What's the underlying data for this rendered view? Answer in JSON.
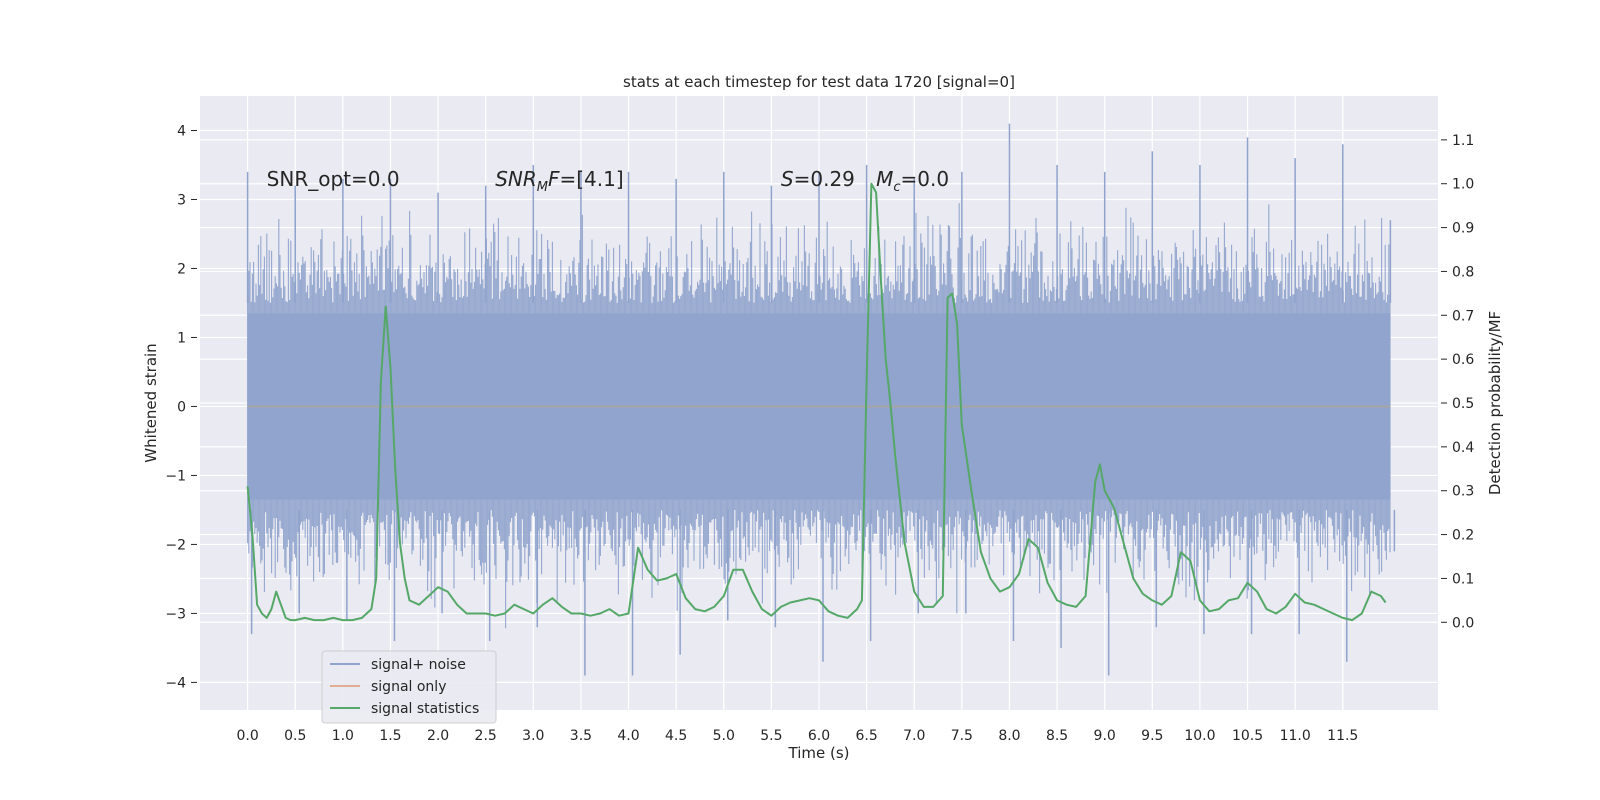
{
  "chart_data": {
    "type": "line",
    "title": "stats at each timestep for test data 1720 [signal=0]",
    "xlabel": "Time (s)",
    "ylabel_left": "Whitened strain",
    "ylabel_right": "Detection probability/MF",
    "xlim": [
      -0.5,
      12.5
    ],
    "ylim_left": [
      -4.4,
      4.5
    ],
    "ylim_right": [
      -0.2,
      1.2
    ],
    "x_ticks": [
      0.0,
      0.5,
      1.0,
      1.5,
      2.0,
      2.5,
      3.0,
      3.5,
      4.0,
      4.5,
      5.0,
      5.5,
      6.0,
      6.5,
      7.0,
      7.5,
      8.0,
      8.5,
      9.0,
      9.5,
      10.0,
      10.5,
      11.0,
      11.5
    ],
    "x_tick_labels": [
      "0.0",
      "0.5",
      "1.0",
      "1.5",
      "2.0",
      "2.5",
      "3.0",
      "3.5",
      "4.0",
      "4.5",
      "5.0",
      "5.5",
      "6.0",
      "6.5",
      "7.0",
      "7.5",
      "8.0",
      "8.5",
      "9.0",
      "9.5",
      "10.0",
      "10.5",
      "11.0",
      "11.5"
    ],
    "y_left_ticks": [
      4,
      3,
      2,
      1,
      0,
      -1,
      -2,
      -3,
      -4
    ],
    "y_left_tick_labels": [
      "4",
      "3",
      "2",
      "1",
      "0",
      "−1",
      "−2",
      "−3",
      "−4"
    ],
    "y_right_ticks": [
      1.1,
      1.0,
      0.9,
      0.8,
      0.7,
      0.6,
      0.5,
      0.4,
      0.3,
      0.2,
      0.1,
      0.0
    ],
    "y_right_tick_labels": [
      "1.1",
      "1.0",
      "0.9",
      "0.8",
      "0.7",
      "0.6",
      "0.5",
      "0.4",
      "0.3",
      "0.2",
      "0.1",
      "0.0"
    ],
    "grid": true,
    "legend_placement": "lower-left",
    "annotations": [
      {
        "label": "SNR_opt=0.0",
        "x": 0.2,
        "y": 3.3
      },
      {
        "label": "SNR_M F=[4.1]",
        "x": 2.6,
        "y": 3.3,
        "math": true,
        "base": "SNR",
        "sub": "M",
        "rest": "F=[4.1]"
      },
      {
        "label": "S=0.29",
        "x": 5.6,
        "y": 3.3,
        "math": true,
        "base": "S",
        "sub": "",
        "rest": "=0.29"
      },
      {
        "label": "M_c=0.0",
        "x": 6.6,
        "y": 3.3,
        "math": true,
        "base": "M",
        "sub": "c",
        "rest": "=0.0"
      }
    ],
    "series": [
      {
        "name": "signal+ noise",
        "axis": "left",
        "color": "#8fa3cc",
        "x_range": [
          0.0,
          12.0
        ],
        "band_envelope": {
          "x": [
            0.0,
            0.5,
            1.0,
            1.5,
            2.0,
            2.5,
            3.0,
            3.5,
            4.0,
            4.5,
            5.0,
            5.5,
            6.0,
            6.5,
            7.0,
            7.5,
            8.0,
            8.5,
            9.0,
            9.5,
            10.0,
            10.5,
            11.0,
            11.5,
            12.0
          ],
          "max": [
            3.4,
            3.2,
            3.3,
            3.3,
            3.1,
            3.2,
            3.5,
            3.4,
            3.4,
            3.3,
            3.4,
            3.2,
            3.4,
            3.5,
            3.3,
            3.4,
            4.1,
            3.5,
            3.4,
            3.7,
            3.5,
            3.9,
            3.6,
            3.8,
            2.7
          ],
          "min": [
            -3.3,
            -3.0,
            -3.1,
            -3.4,
            -3.0,
            -3.4,
            -3.2,
            -3.9,
            -3.9,
            -3.6,
            -3.1,
            -3.2,
            -3.7,
            -3.4,
            -3.0,
            -3.0,
            -3.4,
            -3.5,
            -3.9,
            -3.2,
            -3.3,
            -3.3,
            -3.3,
            -3.7,
            -2.1
          ]
        }
      },
      {
        "name": "signal only",
        "axis": "left",
        "color": "#dd8452",
        "x": [
          0.0,
          12.0
        ],
        "y": [
          0.0,
          0.0
        ]
      },
      {
        "name": "signal statistics",
        "axis": "right",
        "color": "#55a868",
        "x": [
          0.0,
          0.05,
          0.1,
          0.15,
          0.2,
          0.25,
          0.3,
          0.35,
          0.4,
          0.45,
          0.5,
          0.6,
          0.7,
          0.8,
          0.9,
          1.0,
          1.1,
          1.2,
          1.3,
          1.35,
          1.4,
          1.45,
          1.5,
          1.55,
          1.6,
          1.65,
          1.7,
          1.8,
          1.9,
          2.0,
          2.1,
          2.2,
          2.3,
          2.4,
          2.5,
          2.6,
          2.7,
          2.8,
          2.9,
          3.0,
          3.1,
          3.2,
          3.3,
          3.4,
          3.5,
          3.6,
          3.7,
          3.8,
          3.9,
          4.0,
          4.1,
          4.2,
          4.3,
          4.4,
          4.5,
          4.6,
          4.7,
          4.8,
          4.9,
          5.0,
          5.1,
          5.2,
          5.3,
          5.4,
          5.5,
          5.6,
          5.7,
          5.8,
          5.9,
          6.0,
          6.1,
          6.2,
          6.3,
          6.4,
          6.45,
          6.5,
          6.55,
          6.6,
          6.65,
          6.7,
          6.75,
          6.8,
          6.9,
          7.0,
          7.1,
          7.2,
          7.3,
          7.35,
          7.4,
          7.45,
          7.5,
          7.6,
          7.7,
          7.8,
          7.9,
          8.0,
          8.1,
          8.2,
          8.3,
          8.4,
          8.5,
          8.6,
          8.7,
          8.8,
          8.9,
          8.95,
          9.0,
          9.05,
          9.1,
          9.2,
          9.3,
          9.4,
          9.5,
          9.6,
          9.7,
          9.8,
          9.9,
          10.0,
          10.1,
          10.2,
          10.3,
          10.4,
          10.5,
          10.6,
          10.7,
          10.8,
          10.9,
          11.0,
          11.1,
          11.2,
          11.3,
          11.4,
          11.5,
          11.6,
          11.7,
          11.8,
          11.9,
          11.95
        ],
        "y": [
          0.31,
          0.2,
          0.04,
          0.02,
          0.01,
          0.03,
          0.07,
          0.04,
          0.01,
          0.005,
          0.005,
          0.01,
          0.005,
          0.005,
          0.01,
          0.005,
          0.005,
          0.01,
          0.03,
          0.1,
          0.55,
          0.72,
          0.58,
          0.35,
          0.18,
          0.1,
          0.05,
          0.04,
          0.06,
          0.08,
          0.07,
          0.04,
          0.02,
          0.02,
          0.02,
          0.015,
          0.02,
          0.04,
          0.03,
          0.02,
          0.04,
          0.055,
          0.035,
          0.02,
          0.02,
          0.015,
          0.02,
          0.03,
          0.015,
          0.02,
          0.17,
          0.12,
          0.095,
          0.1,
          0.11,
          0.055,
          0.03,
          0.025,
          0.035,
          0.06,
          0.12,
          0.12,
          0.07,
          0.03,
          0.015,
          0.035,
          0.045,
          0.05,
          0.055,
          0.05,
          0.025,
          0.015,
          0.01,
          0.03,
          0.05,
          0.55,
          1.0,
          0.98,
          0.78,
          0.6,
          0.5,
          0.38,
          0.18,
          0.07,
          0.035,
          0.035,
          0.06,
          0.74,
          0.75,
          0.68,
          0.45,
          0.3,
          0.16,
          0.1,
          0.07,
          0.08,
          0.11,
          0.19,
          0.17,
          0.09,
          0.05,
          0.04,
          0.035,
          0.06,
          0.32,
          0.36,
          0.3,
          0.28,
          0.26,
          0.18,
          0.1,
          0.065,
          0.05,
          0.04,
          0.06,
          0.16,
          0.14,
          0.05,
          0.025,
          0.03,
          0.05,
          0.055,
          0.09,
          0.07,
          0.03,
          0.02,
          0.035,
          0.065,
          0.045,
          0.04,
          0.03,
          0.02,
          0.01,
          0.005,
          0.02,
          0.07,
          0.06,
          0.045
        ]
      }
    ]
  }
}
